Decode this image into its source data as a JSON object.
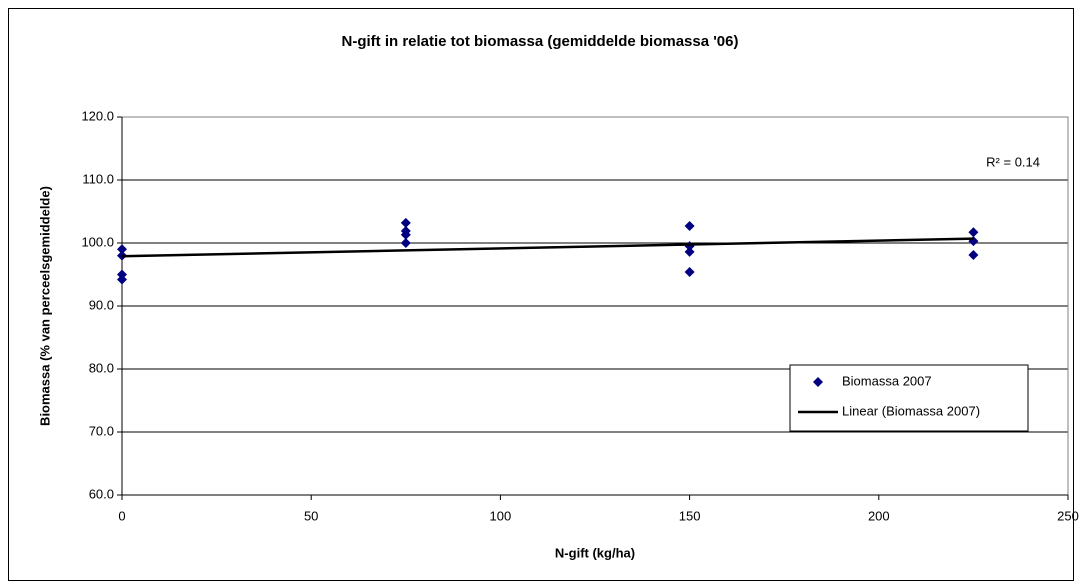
{
  "chart_data": {
    "type": "scatter",
    "title": "N-gift in relatie tot biomassa (gemiddelde biomassa '06)",
    "x_label": "N-gift (kg/ha)",
    "y_label": "Biomassa (% van perceelsgemiddelde)",
    "series": [
      {
        "name": "Biomassa 2007",
        "color": "#000080",
        "x": [
          0,
          0,
          0,
          0,
          75,
          75,
          75,
          75,
          150,
          150,
          150,
          150,
          225,
          225,
          225
        ],
        "values": [
          99.0,
          98.0,
          95.0,
          94.2,
          103.2,
          101.9,
          101.3,
          100.0,
          102.7,
          99.5,
          98.6,
          95.4,
          101.7,
          100.3,
          98.1
        ]
      }
    ],
    "trendline": {
      "name": "Linear (Biomassa 2007)",
      "color": "#000000",
      "x": [
        0,
        225
      ],
      "values": [
        97.9,
        100.7
      ]
    },
    "annotation": "R² = 0.14",
    "xlim": [
      0,
      250
    ],
    "xticks": [
      0,
      50,
      100,
      150,
      200,
      250
    ],
    "ylim": [
      60,
      120
    ],
    "yticks": [
      {
        "value": 60,
        "label": "60.0"
      },
      {
        "value": 70,
        "label": "70.0"
      },
      {
        "value": 80,
        "label": "80.0"
      },
      {
        "value": 90,
        "label": "90.0"
      },
      {
        "value": 100,
        "label": "100.0"
      },
      {
        "value": 110,
        "label": "110.0"
      },
      {
        "value": 120,
        "label": "120.0"
      }
    ],
    "grid": true,
    "legend": "lower right"
  }
}
